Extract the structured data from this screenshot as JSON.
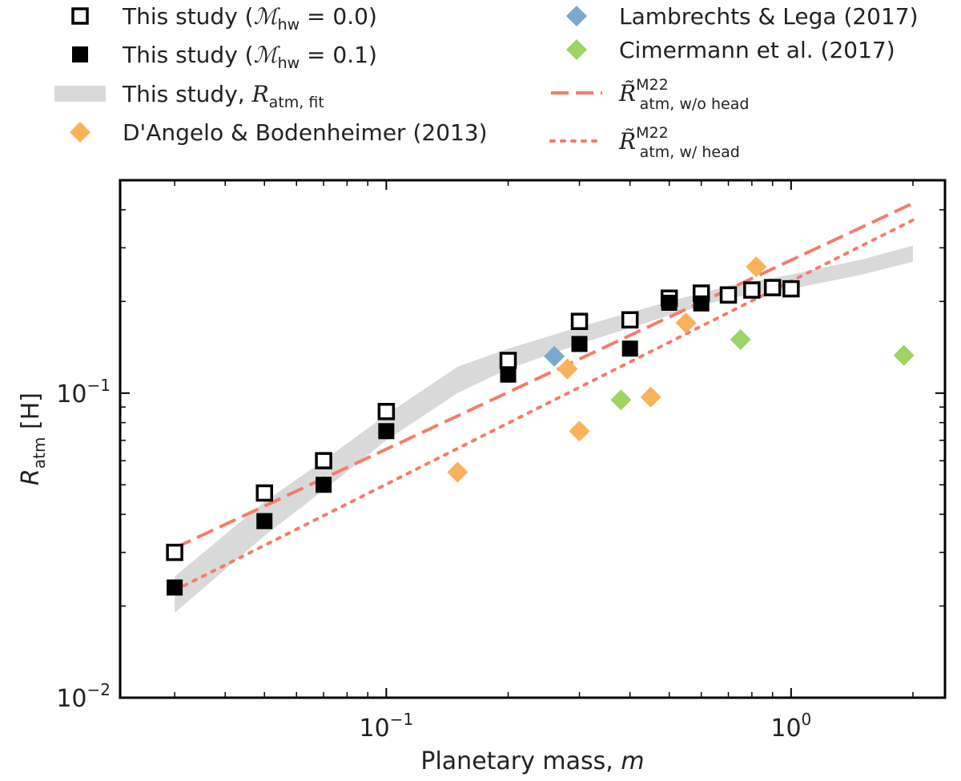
{
  "chart_data": {
    "type": "scatter",
    "xscale": "log",
    "yscale": "log",
    "xlim": [
      0.022,
      2.4
    ],
    "ylim": [
      0.01,
      0.5
    ],
    "xlabel": {
      "main": "Planetary mass, ",
      "var": "m"
    },
    "ylabel": {
      "var": "R",
      "sub": "atm",
      "unit": "[H]"
    },
    "xticks": [
      {
        "value": 0.1,
        "base": "10",
        "exp": "−1"
      },
      {
        "value": 1.0,
        "base": "10",
        "exp": "0"
      }
    ],
    "yticks": [
      {
        "value": 0.01,
        "base": "10",
        "exp": "−2"
      },
      {
        "value": 0.1,
        "base": "10",
        "exp": "−1"
      }
    ],
    "series": [
      {
        "key": "hw0",
        "marker": "open-square",
        "color": "#000000",
        "legend": {
          "prefix": "This study (",
          "sym": "ℳ",
          "sub": "hw",
          "suffix": " = 0.0)"
        },
        "x": [
          0.03,
          0.05,
          0.07,
          0.1,
          0.2,
          0.3,
          0.4,
          0.5,
          0.6,
          0.7,
          0.8,
          0.9,
          1.0
        ],
        "y": [
          0.03,
          0.047,
          0.06,
          0.087,
          0.128,
          0.172,
          0.174,
          0.205,
          0.213,
          0.21,
          0.218,
          0.222,
          0.22
        ]
      },
      {
        "key": "hw01",
        "marker": "filled-square",
        "color": "#000000",
        "legend": {
          "prefix": "This study (",
          "sym": "ℳ",
          "sub": "hw",
          "suffix": " = 0.1)"
        },
        "x": [
          0.03,
          0.05,
          0.07,
          0.1,
          0.2,
          0.3,
          0.4,
          0.5,
          0.6
        ],
        "y": [
          0.023,
          0.038,
          0.05,
          0.075,
          0.115,
          0.145,
          0.14,
          0.198,
          0.197
        ]
      },
      {
        "key": "fit",
        "marker": "band",
        "color": "#d9d9d9",
        "legend": {
          "prefix": "This study, ",
          "sym": "R",
          "sub": "atm, fit",
          "suffix": ""
        },
        "x": [
          0.03,
          0.05,
          0.07,
          0.1,
          0.15,
          0.2,
          0.3,
          0.5,
          0.7,
          1.0,
          1.5,
          2.0
        ],
        "y_low": [
          0.019,
          0.034,
          0.048,
          0.07,
          0.1,
          0.12,
          0.145,
          0.18,
          0.205,
          0.22,
          0.245,
          0.27
        ],
        "y_high": [
          0.025,
          0.044,
          0.06,
          0.085,
          0.122,
          0.14,
          0.165,
          0.2,
          0.225,
          0.245,
          0.275,
          0.305
        ]
      },
      {
        "key": "dangelo",
        "marker": "diamond",
        "color": "#fbb15a",
        "legend": {
          "prefix": "D'Angelo & Bodenheimer (2013)",
          "sym": "",
          "sub": "",
          "suffix": ""
        },
        "x": [
          0.15,
          0.28,
          0.3,
          0.45,
          0.55,
          0.82
        ],
        "y": [
          0.055,
          0.12,
          0.075,
          0.097,
          0.17,
          0.26
        ]
      },
      {
        "key": "lambrechts",
        "marker": "diamond",
        "color": "#7ba8d0",
        "legend": {
          "prefix": "Lambrechts & Lega (2017)",
          "sym": "",
          "sub": "",
          "suffix": ""
        },
        "x": [
          0.26
        ],
        "y": [
          0.132
        ]
      },
      {
        "key": "cimermann",
        "marker": "diamond",
        "color": "#9dd463",
        "legend": {
          "prefix": "Cimermann et al. (2017)",
          "sym": "",
          "sub": "",
          "suffix": ""
        },
        "x": [
          0.38,
          0.75,
          1.9
        ],
        "y": [
          0.095,
          0.15,
          0.133
        ]
      },
      {
        "key": "m22_wo",
        "marker": "dashed-line",
        "color": "#f47c6c",
        "legend": {
          "prefix": "",
          "sym": "R̃",
          "sup": "M22",
          "sub": "atm, w/o head",
          "suffix": ""
        },
        "x": [
          0.03,
          2.0
        ],
        "y": [
          0.031,
          0.42
        ]
      },
      {
        "key": "m22_w",
        "marker": "dotted-line",
        "color": "#f47c6c",
        "legend": {
          "prefix": "",
          "sym": "R̃",
          "sup": "M22",
          "sub": "atm, w/ head",
          "suffix": ""
        },
        "x": [
          0.03,
          2.0
        ],
        "y": [
          0.0225,
          0.37
        ]
      }
    ]
  }
}
